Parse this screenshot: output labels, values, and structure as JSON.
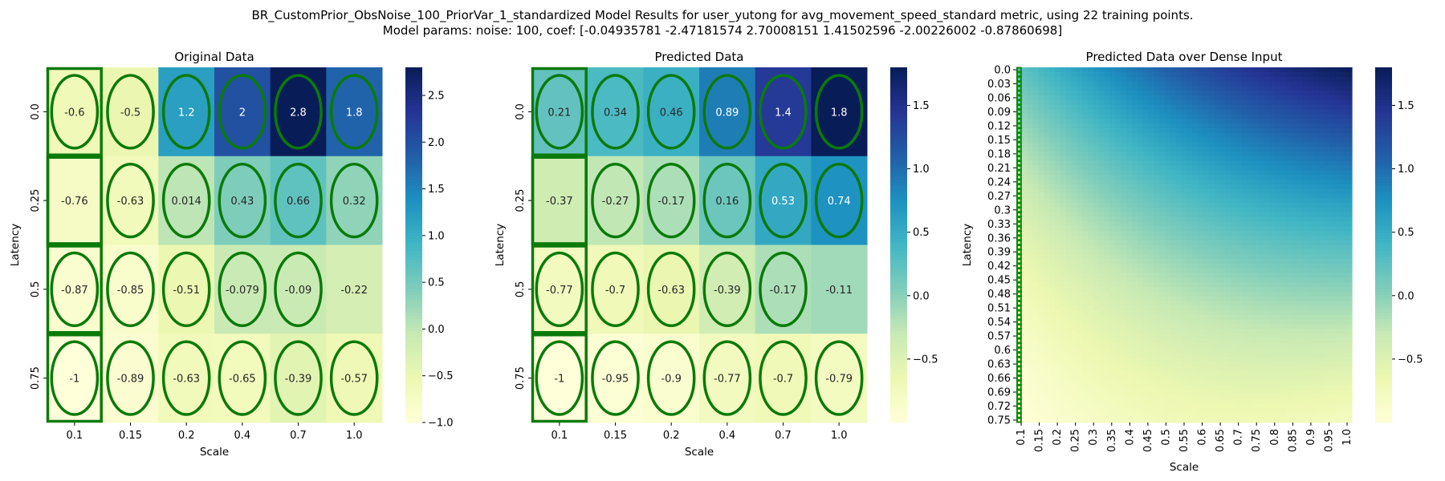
{
  "suptitle": {
    "line1": "BR_CustomPrior_ObsNoise_100_PriorVar_1_standardized Model Results for user_yutong for avg_movement_speed_standard metric, using 22 training points.",
    "line2": "Model params: noise: 100, coef: [-0.04935781 -2.47181574  2.70008151  1.41502596 -2.00226002 -0.87860698]"
  },
  "colors": {
    "colormap": "YlGnBu",
    "marker": "#0a7a0a",
    "dense_first_column": "#0b8a0b"
  },
  "chart_data": [
    {
      "type": "heatmap",
      "title": "Original Data",
      "xlabel": "Scale",
      "ylabel": "Latency",
      "x_categories": [
        "0.1",
        "0.15",
        "0.2",
        "0.4",
        "0.7",
        "1.0"
      ],
      "y_categories": [
        "0.0",
        "0.25",
        "0.5",
        "0.75"
      ],
      "values": [
        [
          -0.6,
          -0.5,
          1.2,
          2,
          2.8,
          1.8
        ],
        [
          -0.76,
          -0.63,
          0.014,
          0.43,
          0.66,
          0.32
        ],
        [
          -0.87,
          -0.85,
          -0.51,
          -0.079,
          -0.09,
          -0.22
        ],
        [
          -1,
          -0.89,
          -0.63,
          -0.65,
          -0.39,
          -0.57
        ]
      ],
      "value_labels": [
        [
          "-0.6",
          "-0.5",
          "1.2",
          "2",
          "2.8",
          "1.8"
        ],
        [
          "-0.76",
          "-0.63",
          "0.014",
          "0.43",
          "0.66",
          "0.32"
        ],
        [
          "-0.87",
          "-0.85",
          "-0.51",
          "-0.079",
          "-0.09",
          "-0.22"
        ],
        [
          "-1",
          "-0.89",
          "-0.63",
          "-0.65",
          "-0.39",
          "-0.57"
        ]
      ],
      "markers": [
        [
          "ellipse",
          "ellipse",
          "ellipse",
          "ellipse",
          "ellipse",
          "ellipse"
        ],
        [
          "rect",
          "ellipse",
          "ellipse",
          "ellipse",
          "ellipse",
          "ellipse"
        ],
        [
          "ellipse",
          "ellipse",
          "ellipse",
          "ellipse",
          "ellipse",
          "none"
        ],
        [
          "ellipse",
          "ellipse",
          "ellipse",
          "ellipse",
          "ellipse",
          "ellipse"
        ]
      ],
      "highlight_column": 0,
      "vmin": -1.0,
      "vmax": 2.8,
      "colorbar_ticks": [
        "2.5",
        "2.0",
        "1.5",
        "1.0",
        "0.5",
        "0.0",
        "−0.5",
        "−1.0"
      ],
      "colorbar_tick_values": [
        2.5,
        2.0,
        1.5,
        1.0,
        0.5,
        0.0,
        -0.5,
        -1.0
      ]
    },
    {
      "type": "heatmap",
      "title": "Predicted Data",
      "xlabel": "Scale",
      "ylabel": "Latency",
      "x_categories": [
        "0.1",
        "0.15",
        "0.2",
        "0.4",
        "0.7",
        "1.0"
      ],
      "y_categories": [
        "0.0",
        "0.25",
        "0.5",
        "0.75"
      ],
      "values": [
        [
          0.21,
          0.34,
          0.46,
          0.89,
          1.4,
          1.8
        ],
        [
          -0.37,
          -0.27,
          -0.17,
          0.16,
          0.53,
          0.74
        ],
        [
          -0.77,
          -0.7,
          -0.63,
          -0.39,
          -0.17,
          -0.11
        ],
        [
          -1,
          -0.95,
          -0.9,
          -0.77,
          -0.7,
          -0.79
        ]
      ],
      "value_labels": [
        [
          "0.21",
          "0.34",
          "0.46",
          "0.89",
          "1.4",
          "1.8"
        ],
        [
          "-0.37",
          "-0.27",
          "-0.17",
          "0.16",
          "0.53",
          "0.74"
        ],
        [
          "-0.77",
          "-0.7",
          "-0.63",
          "-0.39",
          "-0.17",
          "-0.11"
        ],
        [
          "-1",
          "-0.95",
          "-0.9",
          "-0.77",
          "-0.7",
          "-0.79"
        ]
      ],
      "markers": [
        [
          "ellipse",
          "ellipse",
          "ellipse",
          "ellipse",
          "ellipse",
          "ellipse"
        ],
        [
          "rect",
          "ellipse",
          "ellipse",
          "ellipse",
          "ellipse",
          "ellipse"
        ],
        [
          "ellipse",
          "ellipse",
          "ellipse",
          "ellipse",
          "ellipse",
          "none"
        ],
        [
          "ellipse",
          "ellipse",
          "ellipse",
          "ellipse",
          "ellipse",
          "ellipse"
        ]
      ],
      "highlight_column": 0,
      "vmin": -1.0,
      "vmax": 1.8,
      "colorbar_ticks": [
        "1.5",
        "1.0",
        "0.5",
        "0.0",
        "−0.5"
      ],
      "colorbar_tick_values": [
        1.5,
        1.0,
        0.5,
        0.0,
        -0.5
      ]
    },
    {
      "type": "heatmap",
      "title": "Predicted Data over Dense Input",
      "xlabel": "Scale",
      "ylabel": "Latency",
      "x_categories": [
        "0.1",
        "0.15",
        "0.2",
        "0.25",
        "0.3",
        "0.35",
        "0.4",
        "0.45",
        "0.5",
        "0.55",
        "0.6",
        "0.65",
        "0.7",
        "0.75",
        "0.8",
        "0.85",
        "0.9",
        "0.95",
        "1.0"
      ],
      "y_categories": [
        "0.0",
        "0.03",
        "0.06",
        "0.09",
        "0.12",
        "0.15",
        "0.18",
        "0.21",
        "0.24",
        "0.27",
        "0.3",
        "0.33",
        "0.36",
        "0.39",
        "0.42",
        "0.45",
        "0.48",
        "0.51",
        "0.54",
        "0.57",
        "0.6",
        "0.63",
        "0.66",
        "0.69",
        "0.72",
        "0.75"
      ],
      "grid_columns": 61,
      "grid_rows": 76,
      "x_range": [
        0.1,
        1.0
      ],
      "y_range": [
        0.0,
        0.75
      ],
      "coef": [
        -0.04935781,
        -2.47181574,
        2.70008151,
        1.41502596,
        -2.00226002,
        -0.87860698
      ],
      "vmin": -1.0,
      "vmax": 1.8,
      "colorbar_ticks": [
        "1.5",
        "1.0",
        "0.5",
        "0.0",
        "−0.5"
      ],
      "colorbar_tick_values": [
        1.5,
        1.0,
        0.5,
        0.0,
        -0.5
      ]
    }
  ]
}
